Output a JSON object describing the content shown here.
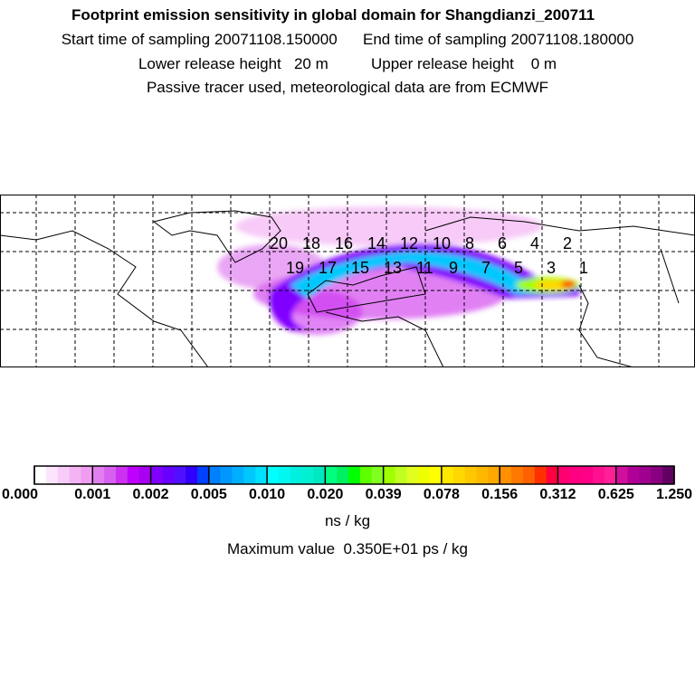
{
  "header": {
    "title": "Footprint emission sensitivity in global domain for Shangdianzi_200711",
    "start_label": "Start time of sampling",
    "start_value": "20071108.150000",
    "end_label": "End time of sampling",
    "end_value": "20071108.180000",
    "lower_label": "Lower release height",
    "lower_value": "20 m",
    "upper_label": "Upper release height",
    "upper_value": "0 m",
    "note": "Passive tracer used, meteorological data are from ECMWF"
  },
  "map": {
    "trajectory_labels": [
      "20",
      "19",
      "18",
      "17",
      "16",
      "15",
      "14",
      "13",
      "12",
      "11",
      "10",
      "9",
      "8",
      "7",
      "6",
      "5",
      "4",
      "3",
      "2",
      "1"
    ]
  },
  "colorbar": {
    "ticks": [
      "0.000",
      "0.001",
      "0.002",
      "0.005",
      "0.010",
      "0.020",
      "0.039",
      "0.078",
      "0.156",
      "0.312",
      "0.625",
      "1.250"
    ],
    "colors": [
      "#ffffff",
      "#fce4fc",
      "#f8ccf8",
      "#f4b4f4",
      "#f09cf0",
      "#e080f0",
      "#d860f0",
      "#cc30f0",
      "#c000ff",
      "#a800f0",
      "#8000ff",
      "#6800ff",
      "#5010ff",
      "#3000ff",
      "#0040ff",
      "#0080ff",
      "#0098ff",
      "#00b0ff",
      "#00c8ff",
      "#00e0ff",
      "#00ffff",
      "#00f8f0",
      "#00f0e0",
      "#00f0d0",
      "#00e8c0",
      "#00ff80",
      "#00f060",
      "#00ff00",
      "#60ff00",
      "#80ff20",
      "#a0ff00",
      "#c0ff20",
      "#e0ff20",
      "#f0ff00",
      "#ffff00",
      "#ffe800",
      "#ffd800",
      "#ffc800",
      "#ffb800",
      "#ffa800",
      "#ff9000",
      "#ff7800",
      "#ff6000",
      "#ff3000",
      "#ff0040",
      "#ff0070",
      "#ff0080",
      "#ff0088",
      "#ff1090",
      "#ff2098",
      "#d0109c",
      "#b00098",
      "#a00090",
      "#880080",
      "#600060"
    ],
    "unit": "ns / kg",
    "max_label": "Maximum value",
    "max_value": "0.350E+01 ps / kg"
  }
}
